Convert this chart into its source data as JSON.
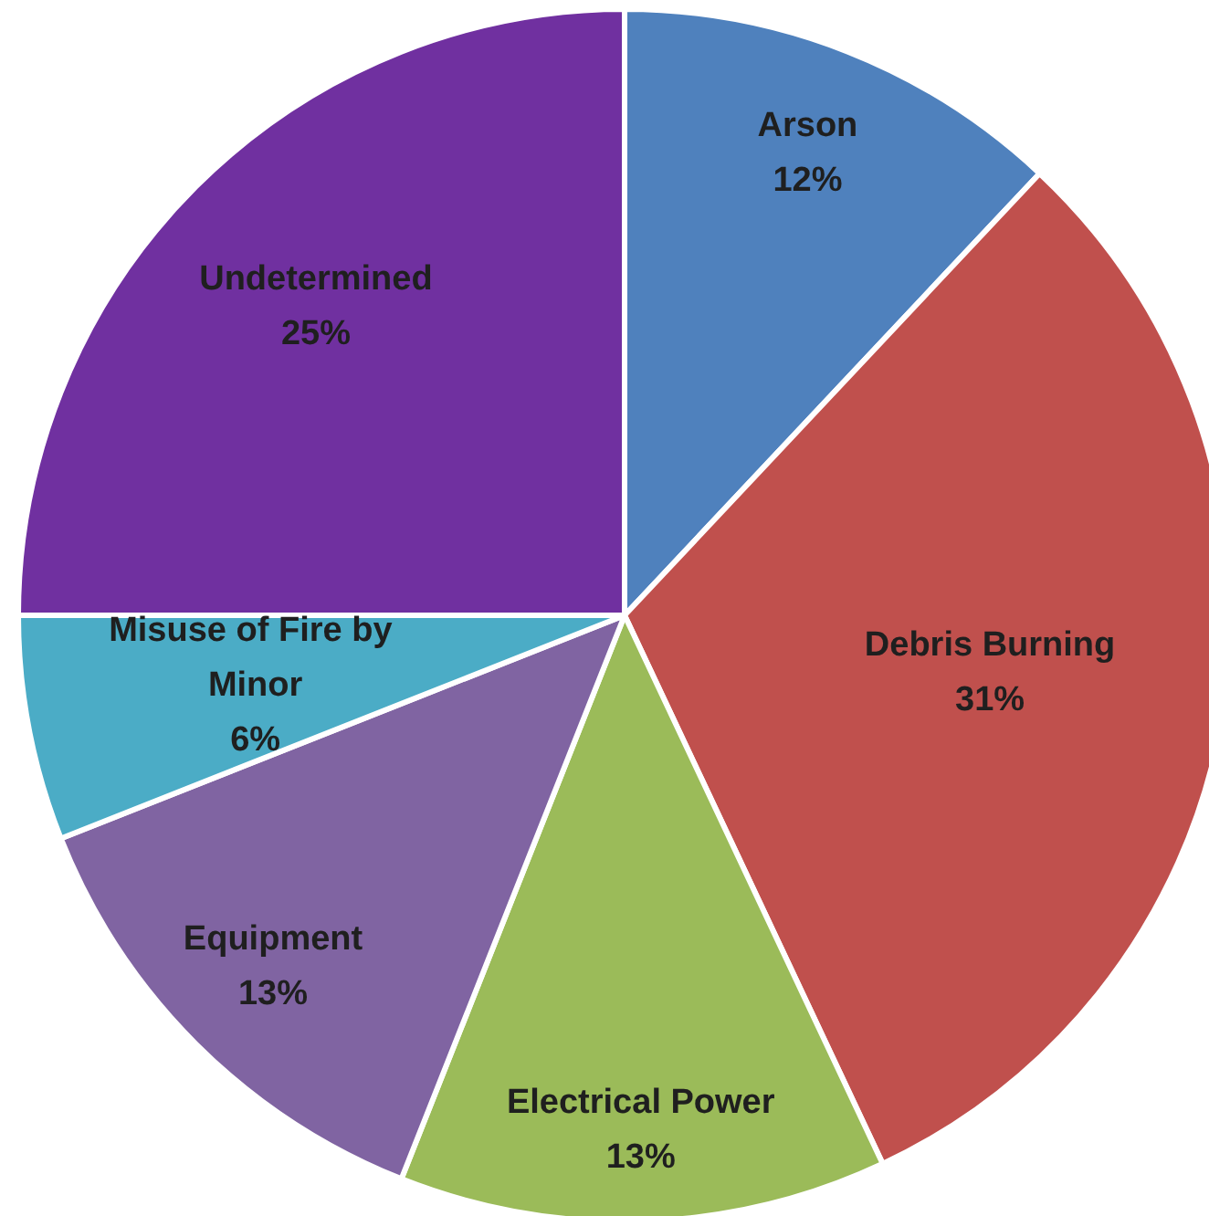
{
  "chart_data": {
    "type": "pie",
    "categories": [
      "Arson",
      "Debris Burning",
      "Electrical Power",
      "Equipment",
      "Misuse of Fire by Minor",
      "Undetermined"
    ],
    "values": [
      12,
      31,
      13,
      13,
      6,
      25
    ],
    "value_labels": [
      "12%",
      "31%",
      "13%",
      "13%",
      "6%",
      "25%"
    ],
    "colors": [
      "#4f81bd",
      "#c0504d",
      "#9bbb59",
      "#8064a2",
      "#4bacc6",
      "#7030a0"
    ]
  }
}
